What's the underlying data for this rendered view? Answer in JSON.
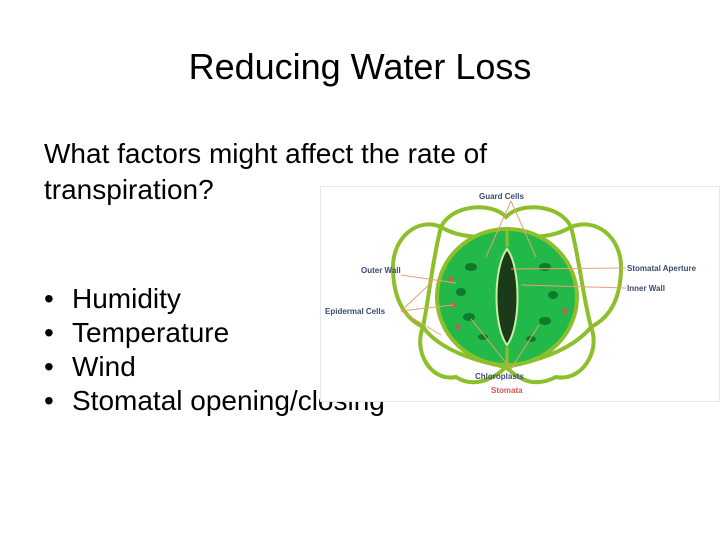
{
  "slide": {
    "title": "Reducing Water Loss",
    "question_line1": "What factors might affect the rate of",
    "question_line2": "transpiration?",
    "bullet_char": "•",
    "bullets": [
      {
        "text": "Humidity"
      },
      {
        "text": "Temperature"
      },
      {
        "text": "Wind"
      },
      {
        "text": "Stomatal opening/closing"
      }
    ]
  },
  "diagram": {
    "labels": {
      "guard_cells": "Guard Cells",
      "outer_wall": "Outer Wall",
      "epidermal_cells": "Epidermal Cells",
      "stomatal_aperture": "Stomatal Aperture",
      "inner_wall": "Inner Wall",
      "chloroplasts": "Chloroplasts",
      "stomata": "Stomata"
    },
    "colors": {
      "label_text": "#3a4a70",
      "stomata_label": "#d9534f",
      "leader_line": "#e8a070",
      "cell_wall": "#8cbf2a",
      "guard_cell_fill": "#22b84a",
      "aperture": "#1a3a1a",
      "epidermal_fill": "#ffffff"
    }
  }
}
